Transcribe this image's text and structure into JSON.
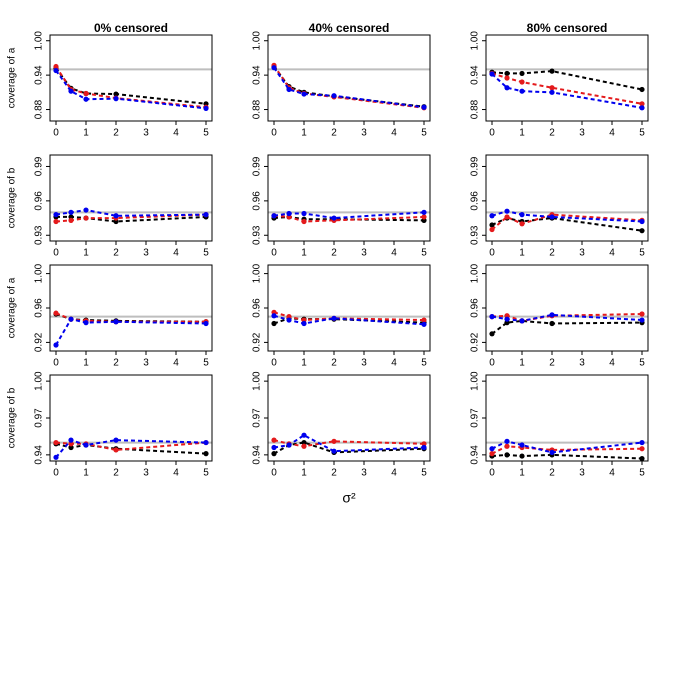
{
  "chart_data": [
    {
      "type": "line",
      "title": "0% censored",
      "ylabel": "coverage of a",
      "x": [
        0,
        0.5,
        1,
        2,
        5
      ],
      "xlim": [
        -0.2,
        5.2
      ],
      "xticks": [
        0,
        1,
        2,
        3,
        4,
        5
      ],
      "ylim": [
        0.86,
        1.01
      ],
      "yticks": [
        0.88,
        0.94,
        {
          "value": 1,
          "label": "1.00"
        }
      ],
      "hline": 0.95,
      "hline_color": "#bebebe",
      "series": [
        {
          "color": "#000000",
          "values": [
            0.952,
            0.917,
            0.908,
            0.907,
            0.89
          ]
        },
        {
          "color": "#e41a1c",
          "values": [
            0.955,
            0.915,
            0.908,
            0.9,
            0.884
          ]
        },
        {
          "color": "#0000ee",
          "values": [
            0.948,
            0.912,
            0.898,
            0.899,
            0.882
          ]
        }
      ]
    },
    {
      "type": "line",
      "title": "40% censored",
      "x": [
        0,
        0.5,
        1,
        2,
        5
      ],
      "xlim": [
        -0.2,
        5.2
      ],
      "xticks": [
        0,
        1,
        2,
        3,
        4,
        5
      ],
      "ylim": [
        0.86,
        1.01
      ],
      "yticks": [
        0.88,
        0.94,
        {
          "value": 1,
          "label": "1.00"
        }
      ],
      "hline": 0.95,
      "hline_color": "#bebebe",
      "series": [
        {
          "color": "#000000",
          "values": [
            0.955,
            0.92,
            0.91,
            0.903,
            0.885
          ]
        },
        {
          "color": "#e41a1c",
          "values": [
            0.957,
            0.918,
            0.908,
            0.902,
            0.883
          ]
        },
        {
          "color": "#0000ee",
          "values": [
            0.953,
            0.915,
            0.907,
            0.904,
            0.884
          ]
        }
      ]
    },
    {
      "type": "line",
      "title": "80% censored",
      "x": [
        0,
        0.5,
        1,
        2,
        5
      ],
      "xlim": [
        -0.2,
        5.2
      ],
      "xticks": [
        0,
        1,
        2,
        3,
        4,
        5
      ],
      "ylim": [
        0.86,
        1.01
      ],
      "yticks": [
        0.88,
        0.94,
        {
          "value": 1,
          "label": "1.00"
        }
      ],
      "hline": 0.95,
      "hline_color": "#bebebe",
      "series": [
        {
          "color": "#000000",
          "values": [
            0.945,
            0.943,
            0.943,
            0.947,
            0.915
          ]
        },
        {
          "color": "#e41a1c",
          "values": [
            0.943,
            0.935,
            0.928,
            0.918,
            0.89
          ]
        },
        {
          "color": "#0000ee",
          "values": [
            0.942,
            0.918,
            0.912,
            0.91,
            0.883
          ]
        }
      ]
    },
    {
      "type": "line",
      "ylabel": "coverage of b",
      "x": [
        0,
        0.5,
        1,
        2,
        5
      ],
      "xlim": [
        -0.2,
        5.2
      ],
      "xticks": [
        0,
        1,
        2,
        3,
        4,
        5
      ],
      "ylim": [
        0.925,
        1.0
      ],
      "yticks": [
        0.93,
        0.96,
        0.99
      ],
      "hline": 0.95,
      "hline_color": "#bebebe",
      "series": [
        {
          "color": "#000000",
          "values": [
            0.946,
            0.946,
            0.945,
            0.942,
            0.946
          ]
        },
        {
          "color": "#e41a1c",
          "values": [
            0.942,
            0.943,
            0.945,
            0.945,
            0.948
          ]
        },
        {
          "color": "#0000ee",
          "values": [
            0.948,
            0.95,
            0.952,
            0.947,
            0.948
          ]
        }
      ]
    },
    {
      "type": "line",
      "x": [
        0,
        0.5,
        1,
        2,
        5
      ],
      "xlim": [
        -0.2,
        5.2
      ],
      "xticks": [
        0,
        1,
        2,
        3,
        4,
        5
      ],
      "ylim": [
        0.925,
        1.0
      ],
      "yticks": [
        0.93,
        0.96,
        0.99
      ],
      "hline": 0.95,
      "hline_color": "#bebebe",
      "series": [
        {
          "color": "#000000",
          "values": [
            0.945,
            0.946,
            0.944,
            0.944,
            0.943
          ]
        },
        {
          "color": "#e41a1c",
          "values": [
            0.947,
            0.946,
            0.942,
            0.943,
            0.946
          ]
        },
        {
          "color": "#0000ee",
          "values": [
            0.947,
            0.949,
            0.949,
            0.945,
            0.95
          ]
        }
      ]
    },
    {
      "type": "line",
      "x": [
        0,
        0.5,
        1,
        2,
        5
      ],
      "xlim": [
        -0.2,
        5.2
      ],
      "xticks": [
        0,
        1,
        2,
        3,
        4,
        5
      ],
      "ylim": [
        0.925,
        1.0
      ],
      "yticks": [
        0.93,
        0.96,
        0.99
      ],
      "hline": 0.95,
      "hline_color": "#bebebe",
      "series": [
        {
          "color": "#000000",
          "values": [
            0.939,
            0.945,
            0.942,
            0.945,
            0.934
          ]
        },
        {
          "color": "#e41a1c",
          "values": [
            0.935,
            0.946,
            0.94,
            0.948,
            0.943
          ]
        },
        {
          "color": "#0000ee",
          "values": [
            0.947,
            0.951,
            0.948,
            0.946,
            0.942
          ]
        }
      ]
    },
    {
      "type": "line",
      "ylabel": "coverage of a",
      "x": [
        0,
        0.5,
        1,
        2,
        5
      ],
      "xlim": [
        -0.2,
        5.2
      ],
      "xticks": [
        0,
        1,
        2,
        3,
        4,
        5
      ],
      "ylim": [
        0.91,
        1.01
      ],
      "yticks": [
        0.92,
        0.96,
        {
          "value": 1,
          "label": "1.00"
        }
      ],
      "hline": 0.95,
      "hline_color": "#bebebe",
      "series": [
        {
          "color": "#000000",
          "values": [
            0.953,
            0.947,
            0.946,
            0.945,
            0.944
          ]
        },
        {
          "color": "#e41a1c",
          "values": [
            0.954,
            0.947,
            0.945,
            0.944,
            0.944
          ]
        },
        {
          "color": "#0000ee",
          "values": [
            0.917,
            0.947,
            0.943,
            0.944,
            0.942
          ]
        }
      ]
    },
    {
      "type": "line",
      "x": [
        0,
        0.5,
        1,
        2,
        5
      ],
      "xlim": [
        -0.2,
        5.2
      ],
      "xticks": [
        0,
        1,
        2,
        3,
        4,
        5
      ],
      "ylim": [
        0.91,
        1.01
      ],
      "yticks": [
        0.92,
        0.96,
        {
          "value": 1,
          "label": "1.00"
        }
      ],
      "hline": 0.95,
      "hline_color": "#bebebe",
      "series": [
        {
          "color": "#000000",
          "values": [
            0.942,
            0.948,
            0.947,
            0.947,
            0.943
          ]
        },
        {
          "color": "#e41a1c",
          "values": [
            0.955,
            0.95,
            0.946,
            0.948,
            0.946
          ]
        },
        {
          "color": "#0000ee",
          "values": [
            0.951,
            0.946,
            0.942,
            0.948,
            0.941
          ]
        }
      ]
    },
    {
      "type": "line",
      "x": [
        0,
        0.5,
        1,
        2,
        5
      ],
      "xlim": [
        -0.2,
        5.2
      ],
      "xticks": [
        0,
        1,
        2,
        3,
        4,
        5
      ],
      "ylim": [
        0.91,
        1.01
      ],
      "yticks": [
        0.92,
        0.96,
        {
          "value": 1,
          "label": "1.00"
        }
      ],
      "hline": 0.95,
      "hline_color": "#bebebe",
      "series": [
        {
          "color": "#000000",
          "values": [
            0.93,
            0.943,
            0.945,
            0.942,
            0.943
          ]
        },
        {
          "color": "#e41a1c",
          "values": [
            0.95,
            0.951,
            0.945,
            0.951,
            0.953
          ]
        },
        {
          "color": "#0000ee",
          "values": [
            0.95,
            0.947,
            0.945,
            0.952,
            0.946
          ]
        }
      ]
    },
    {
      "type": "line",
      "ylabel": "coverage of b",
      "x": [
        0,
        0.5,
        1,
        2,
        5
      ],
      "xlim": [
        -0.2,
        5.2
      ],
      "xticks": [
        0,
        1,
        2,
        3,
        4,
        5
      ],
      "ylim": [
        0.935,
        1.005
      ],
      "yticks": [
        0.94,
        0.97,
        {
          "value": 1,
          "label": "1.00"
        }
      ],
      "hline": 0.95,
      "hline_color": "#bebebe",
      "series": [
        {
          "color": "#000000",
          "values": [
            0.949,
            0.946,
            0.948,
            0.945,
            0.941
          ]
        },
        {
          "color": "#e41a1c",
          "values": [
            0.95,
            0.949,
            0.949,
            0.944,
            0.95
          ]
        },
        {
          "color": "#0000ee",
          "values": [
            0.938,
            0.952,
            0.948,
            0.952,
            0.95
          ]
        }
      ]
    },
    {
      "type": "line",
      "xlabel": "σ²",
      "x": [
        0,
        0.5,
        1,
        2,
        5
      ],
      "xlim": [
        -0.2,
        5.2
      ],
      "xticks": [
        0,
        1,
        2,
        3,
        4,
        5
      ],
      "ylim": [
        0.935,
        1.005
      ],
      "yticks": [
        0.94,
        0.97,
        {
          "value": 1,
          "label": "1.00"
        }
      ],
      "hline": 0.95,
      "hline_color": "#bebebe",
      "series": [
        {
          "color": "#000000",
          "values": [
            0.941,
            0.948,
            0.95,
            0.942,
            0.945
          ]
        },
        {
          "color": "#e41a1c",
          "values": [
            0.952,
            0.949,
            0.947,
            0.951,
            0.949
          ]
        },
        {
          "color": "#0000ee",
          "values": [
            0.946,
            0.948,
            0.956,
            0.943,
            0.946
          ]
        }
      ]
    },
    {
      "type": "line",
      "x": [
        0,
        0.5,
        1,
        2,
        5
      ],
      "xlim": [
        -0.2,
        5.2
      ],
      "xticks": [
        0,
        1,
        2,
        3,
        4,
        5
      ],
      "ylim": [
        0.935,
        1.005
      ],
      "yticks": [
        0.94,
        0.97,
        {
          "value": 1,
          "label": "1.00"
        }
      ],
      "hline": 0.95,
      "hline_color": "#bebebe",
      "series": [
        {
          "color": "#000000",
          "values": [
            0.939,
            0.94,
            0.939,
            0.94,
            0.937
          ]
        },
        {
          "color": "#e41a1c",
          "values": [
            0.941,
            0.947,
            0.946,
            0.944,
            0.945
          ]
        },
        {
          "color": "#0000ee",
          "values": [
            0.945,
            0.951,
            0.948,
            0.942,
            0.95
          ]
        }
      ]
    }
  ]
}
